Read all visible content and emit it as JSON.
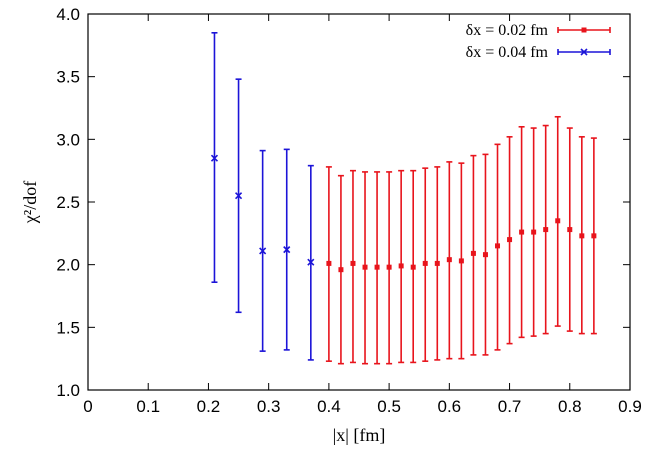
{
  "chart_data": {
    "type": "scatter",
    "xlabel": "|x| [fm]",
    "ylabel": "χ²/dof",
    "xlim": [
      0,
      0.9
    ],
    "ylim": [
      1.0,
      4.0
    ],
    "xticks": [
      "0",
      "0.1",
      "0.2",
      "0.3",
      "0.4",
      "0.5",
      "0.6",
      "0.7",
      "0.8",
      "0.9"
    ],
    "yticks": [
      "1.0",
      "1.5",
      "2.0",
      "2.5",
      "3.0",
      "3.5",
      "4.0"
    ],
    "grid": false,
    "legend_position": "top-right",
    "series": [
      {
        "name": "δx = 0.02 fm",
        "color": "#e8141c",
        "marker": "square",
        "points": [
          {
            "x": 0.4,
            "y": 2.01,
            "lo": 1.23,
            "hi": 2.78
          },
          {
            "x": 0.42,
            "y": 1.96,
            "lo": 1.21,
            "hi": 2.71
          },
          {
            "x": 0.44,
            "y": 2.01,
            "lo": 1.22,
            "hi": 2.75
          },
          {
            "x": 0.46,
            "y": 1.98,
            "lo": 1.21,
            "hi": 2.74
          },
          {
            "x": 0.48,
            "y": 1.98,
            "lo": 1.21,
            "hi": 2.74
          },
          {
            "x": 0.5,
            "y": 1.98,
            "lo": 1.21,
            "hi": 2.74
          },
          {
            "x": 0.52,
            "y": 1.99,
            "lo": 1.22,
            "hi": 2.75
          },
          {
            "x": 0.54,
            "y": 1.98,
            "lo": 1.22,
            "hi": 2.75
          },
          {
            "x": 0.56,
            "y": 2.01,
            "lo": 1.23,
            "hi": 2.77
          },
          {
            "x": 0.58,
            "y": 2.01,
            "lo": 1.24,
            "hi": 2.78
          },
          {
            "x": 0.6,
            "y": 2.04,
            "lo": 1.25,
            "hi": 2.82
          },
          {
            "x": 0.62,
            "y": 2.03,
            "lo": 1.25,
            "hi": 2.81
          },
          {
            "x": 0.64,
            "y": 2.09,
            "lo": 1.28,
            "hi": 2.87
          },
          {
            "x": 0.66,
            "y": 2.08,
            "lo": 1.28,
            "hi": 2.88
          },
          {
            "x": 0.68,
            "y": 2.15,
            "lo": 1.32,
            "hi": 2.96
          },
          {
            "x": 0.7,
            "y": 2.2,
            "lo": 1.37,
            "hi": 3.02
          },
          {
            "x": 0.72,
            "y": 2.26,
            "lo": 1.42,
            "hi": 3.1
          },
          {
            "x": 0.74,
            "y": 2.26,
            "lo": 1.43,
            "hi": 3.09
          },
          {
            "x": 0.76,
            "y": 2.28,
            "lo": 1.45,
            "hi": 3.11
          },
          {
            "x": 0.78,
            "y": 2.35,
            "lo": 1.51,
            "hi": 3.18
          },
          {
            "x": 0.8,
            "y": 2.28,
            "lo": 1.47,
            "hi": 3.09
          },
          {
            "x": 0.82,
            "y": 2.23,
            "lo": 1.45,
            "hi": 3.02
          },
          {
            "x": 0.84,
            "y": 2.23,
            "lo": 1.45,
            "hi": 3.01
          }
        ]
      },
      {
        "name": "δx = 0.04 fm",
        "color": "#1c14d8",
        "marker": "x",
        "points": [
          {
            "x": 0.21,
            "y": 2.85,
            "lo": 1.86,
            "hi": 3.85
          },
          {
            "x": 0.25,
            "y": 2.55,
            "lo": 1.62,
            "hi": 3.48
          },
          {
            "x": 0.29,
            "y": 2.11,
            "lo": 1.31,
            "hi": 2.91
          },
          {
            "x": 0.33,
            "y": 2.12,
            "lo": 1.32,
            "hi": 2.92
          },
          {
            "x": 0.37,
            "y": 2.02,
            "lo": 1.24,
            "hi": 2.79
          }
        ]
      }
    ]
  }
}
